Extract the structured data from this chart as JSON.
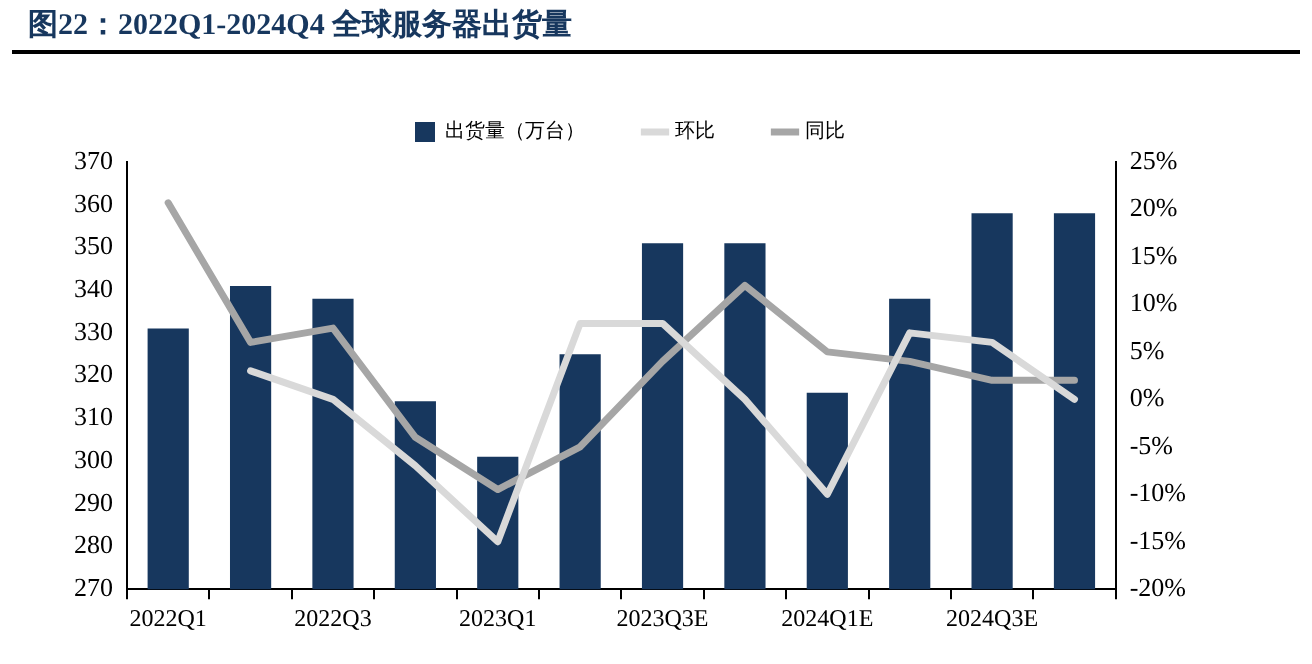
{
  "chart_data": {
    "type": "bar",
    "title": "图22：2022Q1-2024Q4 全球服务器出货量",
    "categories": [
      "2022Q1",
      null,
      "2022Q3",
      null,
      "2023Q1",
      null,
      "2023Q3E",
      null,
      "2024Q1E",
      null,
      "2024Q3E",
      null
    ],
    "series": [
      {
        "name": "出货量（万台）",
        "color": "#17375e",
        "values": [
          331,
          341,
          338,
          314,
          301,
          325,
          351,
          351,
          316,
          338,
          358,
          358
        ]
      },
      {
        "name": "环比",
        "type": "line",
        "axis": "y2",
        "color": "#d9d9d9",
        "values": [
          null,
          3,
          0,
          -7,
          -15,
          8,
          8,
          0,
          -10,
          7,
          6,
          0
        ]
      },
      {
        "name": "同比",
        "type": "line",
        "axis": "y2",
        "color": "#a6a6a6",
        "values": [
          20.7,
          6,
          7.5,
          -4,
          -9.5,
          -5,
          4,
          12,
          5,
          4,
          2,
          2
        ]
      }
    ],
    "ylim": [
      270,
      370
    ],
    "yticks": [
      270,
      280,
      290,
      300,
      310,
      320,
      330,
      340,
      350,
      360,
      370
    ],
    "y2lim": [
      -20,
      25
    ],
    "y2ticks": [
      {
        "value": -20,
        "label": "-20%"
      },
      {
        "value": -15,
        "label": "-15%"
      },
      {
        "value": -10,
        "label": "-10%"
      },
      {
        "value": -5,
        "label": "-5%"
      },
      {
        "value": 0,
        "label": "0%"
      },
      {
        "value": 5,
        "label": "5%"
      },
      {
        "value": 10,
        "label": "10%"
      },
      {
        "value": 15,
        "label": "15%"
      },
      {
        "value": 20,
        "label": "20%"
      },
      {
        "value": 25,
        "label": "25%"
      }
    ],
    "legend": "top",
    "grid": false,
    "marker": "none"
  }
}
